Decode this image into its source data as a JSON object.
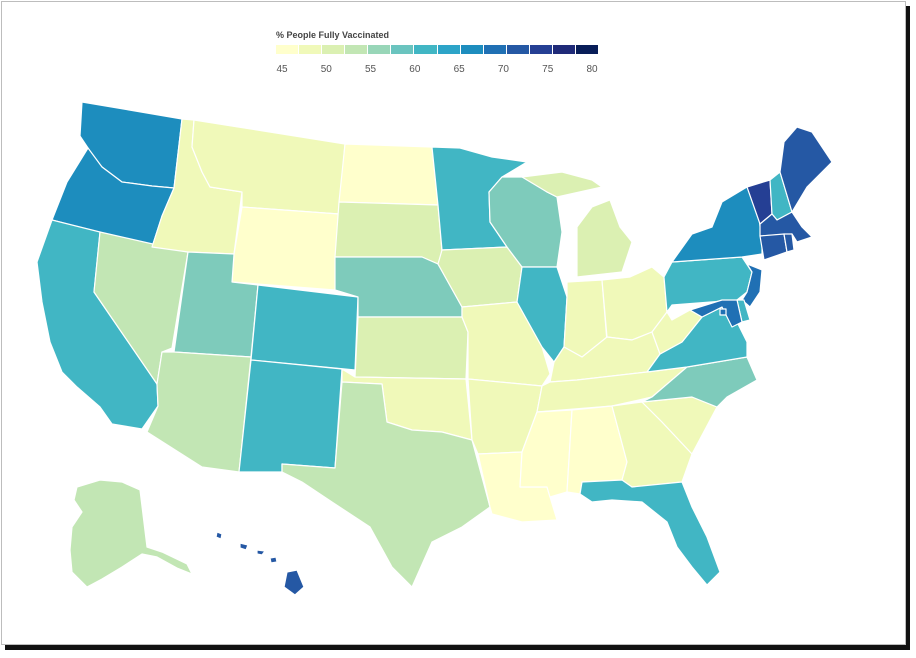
{
  "legend": {
    "title": "% People Fully Vaccinated",
    "ticks": [
      "45",
      "50",
      "55",
      "60",
      "65",
      "70",
      "75",
      "80"
    ],
    "colors": [
      "#ffffcc",
      "#f0f9b9",
      "#dbf0b2",
      "#c2e6b4",
      "#98d6b8",
      "#6ac4bf",
      "#41b6c4",
      "#2da4c8",
      "#1d8dbe",
      "#2070b4",
      "#2558a4",
      "#253f94",
      "#1f2a78",
      "#081d58"
    ]
  },
  "states": {
    "WA": {
      "name": "Washington",
      "color": "#1d8dbe"
    },
    "OR": {
      "name": "Oregon",
      "color": "#1d8dbe"
    },
    "CA": {
      "name": "California",
      "color": "#41b6c4"
    },
    "NV": {
      "name": "Nevada",
      "color": "#c2e6b4"
    },
    "ID": {
      "name": "Idaho",
      "color": "#f0f9b9"
    },
    "MT": {
      "name": "Montana",
      "color": "#f0f9b9"
    },
    "WY": {
      "name": "Wyoming",
      "color": "#ffffcc"
    },
    "UT": {
      "name": "Utah",
      "color": "#7ecbbb"
    },
    "AZ": {
      "name": "Arizona",
      "color": "#c2e6b4"
    },
    "CO": {
      "name": "Colorado",
      "color": "#41b6c4"
    },
    "NM": {
      "name": "New Mexico",
      "color": "#41b6c4"
    },
    "ND": {
      "name": "North Dakota",
      "color": "#ffffcc"
    },
    "SD": {
      "name": "South Dakota",
      "color": "#dbf0b2"
    },
    "NE": {
      "name": "Nebraska",
      "color": "#7ecbbb"
    },
    "KS": {
      "name": "Kansas",
      "color": "#dbf0b2"
    },
    "OK": {
      "name": "Oklahoma",
      "color": "#f0f9b9"
    },
    "TX": {
      "name": "Texas",
      "color": "#c2e6b4"
    },
    "MN": {
      "name": "Minnesota",
      "color": "#41b6c4"
    },
    "IA": {
      "name": "Iowa",
      "color": "#dbf0b2"
    },
    "MO": {
      "name": "Missouri",
      "color": "#f0f9b9"
    },
    "AR": {
      "name": "Arkansas",
      "color": "#f0f9b9"
    },
    "LA": {
      "name": "Louisiana",
      "color": "#ffffcc"
    },
    "WI": {
      "name": "Wisconsin",
      "color": "#7ecbbb"
    },
    "IL": {
      "name": "Illinois",
      "color": "#41b6c4"
    },
    "MI": {
      "name": "Michigan",
      "color": "#dbf0b2"
    },
    "IN": {
      "name": "Indiana",
      "color": "#f0f9b9"
    },
    "OH": {
      "name": "Ohio",
      "color": "#f0f9b9"
    },
    "KY": {
      "name": "Kentucky",
      "color": "#f0f9b9"
    },
    "TN": {
      "name": "Tennessee",
      "color": "#f0f9b9"
    },
    "MS": {
      "name": "Mississippi",
      "color": "#ffffcc"
    },
    "AL": {
      "name": "Alabama",
      "color": "#ffffcc"
    },
    "GA": {
      "name": "Georgia",
      "color": "#f0f9b9"
    },
    "FL": {
      "name": "Florida",
      "color": "#41b6c4"
    },
    "SC": {
      "name": "South Carolina",
      "color": "#f0f9b9"
    },
    "NC": {
      "name": "North Carolina",
      "color": "#7ecbbb"
    },
    "VA": {
      "name": "Virginia",
      "color": "#41b6c4"
    },
    "WV": {
      "name": "West Virginia",
      "color": "#f0f9b9"
    },
    "PA": {
      "name": "Pennsylvania",
      "color": "#41b6c4"
    },
    "NY": {
      "name": "New York",
      "color": "#1d8dbe"
    },
    "VT": {
      "name": "Vermont",
      "color": "#253f94"
    },
    "NH": {
      "name": "New Hampshire",
      "color": "#41b6c4"
    },
    "ME": {
      "name": "Maine",
      "color": "#2558a4"
    },
    "MA": {
      "name": "Massachusetts",
      "color": "#2558a4"
    },
    "CT": {
      "name": "Connecticut",
      "color": "#2558a4"
    },
    "RI": {
      "name": "Rhode Island",
      "color": "#2558a4"
    },
    "NJ": {
      "name": "New Jersey",
      "color": "#2070b4"
    },
    "DE": {
      "name": "Delaware",
      "color": "#41b6c4"
    },
    "MD": {
      "name": "Maryland",
      "color": "#2070b4"
    },
    "DC": {
      "name": "District of Columbia",
      "color": "#2070b4"
    },
    "AK": {
      "name": "Alaska",
      "color": "#c2e6b4"
    },
    "HI": {
      "name": "Hawaii",
      "color": "#2558a4"
    }
  }
}
